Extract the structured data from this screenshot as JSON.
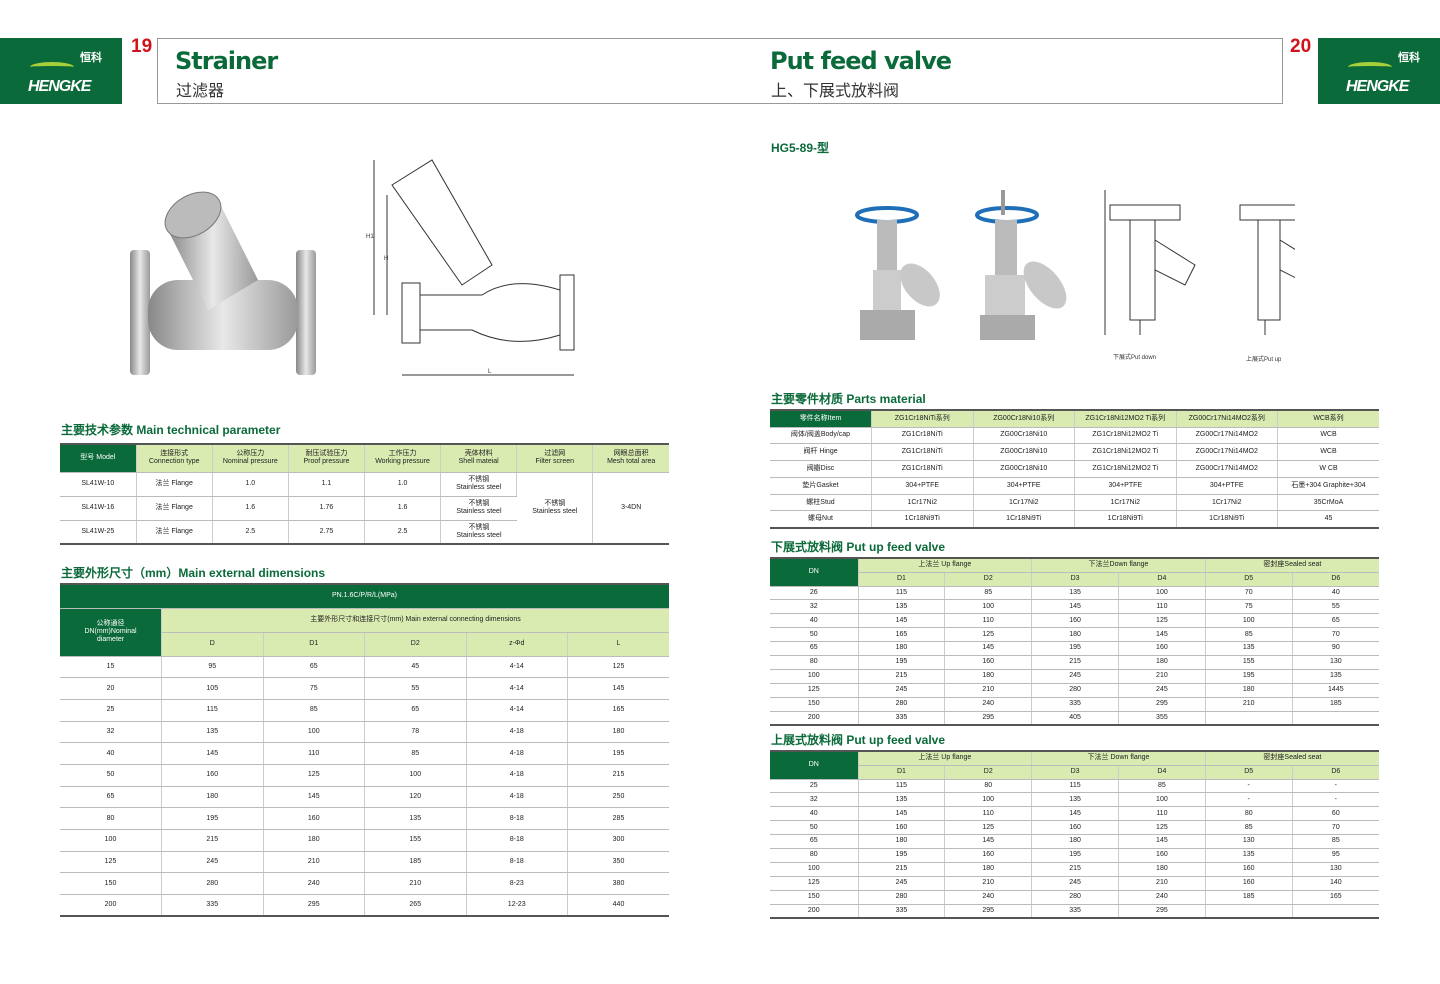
{
  "brand": {
    "name": "HENGKE",
    "cn": "恒科"
  },
  "colors": {
    "brand_green": "#0b6a3a",
    "header_light": "#d9ebb0",
    "page_number": "#d0121b"
  },
  "left_page": {
    "number": "19",
    "title_en": "Strainer",
    "title_cn": "过滤器",
    "drawing_labels": {
      "h1": "H1",
      "h": "H",
      "l": "L"
    },
    "tech_title": "主要技术参数 Main technical parameter",
    "tech_headers": [
      "型号 Model",
      "连接形式\nConnection type",
      "公称压力\nNominal pressure",
      "耐压试验压力\nProof pressure",
      "工作压力\nWorking pressure",
      "壳体材料\nShell mateial",
      "过滤网\nFilter screen",
      "网眼总面积\nMesh total area"
    ],
    "tech_rows": [
      [
        "SL41W-10",
        "法兰 Flange",
        "1.0",
        "1.1",
        "1.0",
        "不锈钢\nStainless steel"
      ],
      [
        "SL41W-16",
        "法兰 Flange",
        "1.6",
        "1.76",
        "1.6",
        "不锈钢\nStainless steel"
      ],
      [
        "SL41W-25",
        "法兰 Flange",
        "2.5",
        "2.75",
        "2.5",
        "不锈钢\nStainless steel"
      ]
    ],
    "tech_filter": "不锈钢\nStainless steel",
    "tech_mesh": "3-4DN",
    "dim_title": "主要外形尺寸（mm）Main external dimensions",
    "dim_pn": "PN.1.6C/P/R/L(MPa)",
    "dim_dn_header": "公称通径\nDN(mm)Nominal\ndiameter",
    "dim_group": "主要外形尺寸和连接尺寸(mm) Main external connecting dimensions",
    "dim_cols": [
      "D",
      "D1",
      "D2",
      "z-Φd",
      "L"
    ],
    "dim_rows": [
      [
        "15",
        "95",
        "65",
        "45",
        "4-14",
        "125"
      ],
      [
        "20",
        "105",
        "75",
        "55",
        "4-14",
        "145"
      ],
      [
        "25",
        "115",
        "85",
        "65",
        "4-14",
        "165"
      ],
      [
        "32",
        "135",
        "100",
        "78",
        "4-18",
        "180"
      ],
      [
        "40",
        "145",
        "110",
        "85",
        "4-18",
        "195"
      ],
      [
        "50",
        "160",
        "125",
        "100",
        "4-18",
        "215"
      ],
      [
        "65",
        "180",
        "145",
        "120",
        "4-18",
        "250"
      ],
      [
        "80",
        "195",
        "160",
        "135",
        "8-18",
        "285"
      ],
      [
        "100",
        "215",
        "180",
        "155",
        "8-18",
        "300"
      ],
      [
        "125",
        "245",
        "210",
        "185",
        "8-18",
        "350"
      ],
      [
        "150",
        "280",
        "240",
        "210",
        "8-23",
        "380"
      ],
      [
        "200",
        "335",
        "295",
        "265",
        "12-23",
        "440"
      ]
    ]
  },
  "right_page": {
    "number": "20",
    "title_en": "Put feed valve",
    "title_cn": "上、下展式放料阀",
    "model": "HG5-89-型",
    "caption_down": "下展式Put down",
    "caption_up": "上展式Put up",
    "parts_title": "主要零件材质 Parts material",
    "parts_headers": [
      "零件名称Item",
      "ZG1Cr18NiTi系列",
      "ZG00Cr18Ni10系列",
      "ZG1Cr18Ni12MO2 Ti系列",
      "ZG00Cr17Ni14MO2系列",
      "WCB系列"
    ],
    "parts_rows": [
      [
        "阀体/阀盖Body/cap",
        "ZG1Cr18NiTi",
        "ZG00Cr18Ni10",
        "ZG1Cr18Ni12MO2 Ti",
        "ZG00Cr17Ni14MO2",
        "WCB"
      ],
      [
        "阀杆 Hinge",
        "ZG1Cr18NiTi",
        "ZG00Cr18Ni10",
        "ZG1Cr18Ni12MO2 Ti",
        "ZG00Cr17Ni14MO2",
        "WCB"
      ],
      [
        "阀瓣Disc",
        "ZG1Cr18NiTi",
        "ZG00Cr18Ni10",
        "ZG1Cr18Ni12MO2 Ti",
        "ZG00Cr17Ni14MO2",
        "W CB"
      ],
      [
        "垫片Gasket",
        "304+PTFE",
        "304+PTFE",
        "304+PTFE",
        "304+PTFE",
        "石墨+304 Graphite+304"
      ],
      [
        "螺柱Stud",
        "1Cr17Ni2",
        "1Cr17Ni2",
        "1Cr17Ni2",
        "1Cr17Ni2",
        "35CrMoA"
      ],
      [
        "螺母Nut",
        "1Cr18Ni9Ti",
        "1Cr18Ni9Ti",
        "1Cr18Ni9Ti",
        "1Cr18Ni9Ti",
        "45"
      ]
    ],
    "down_title": "下展式放料阀 Put up feed valve",
    "down_groups": [
      "上法兰 Up flange",
      "下法兰Down flange",
      "密封座Sealed seat"
    ],
    "up_title": "上展式放料阀 Put up feed valve",
    "up_groups": [
      "上法兰 Up flange",
      "下法兰 Down flange",
      "密封座Sealed seat"
    ],
    "dn_label": "DN",
    "sub_cols": [
      "D1",
      "D2",
      "D3",
      "D4",
      "D5",
      "D6"
    ],
    "down_rows": [
      [
        "26",
        "115",
        "85",
        "135",
        "100",
        "70",
        "40"
      ],
      [
        "32",
        "135",
        "100",
        "145",
        "110",
        "75",
        "55"
      ],
      [
        "40",
        "145",
        "110",
        "160",
        "125",
        "100",
        "65"
      ],
      [
        "50",
        "165",
        "125",
        "180",
        "145",
        "85",
        "70"
      ],
      [
        "65",
        "180",
        "145",
        "195",
        "160",
        "135",
        "90"
      ],
      [
        "80",
        "195",
        "160",
        "215",
        "180",
        "155",
        "130"
      ],
      [
        "100",
        "215",
        "180",
        "245",
        "210",
        "195",
        "135"
      ],
      [
        "125",
        "245",
        "210",
        "280",
        "245",
        "180",
        "1445"
      ],
      [
        "150",
        "280",
        "240",
        "335",
        "295",
        "210",
        "185"
      ],
      [
        "200",
        "335",
        "295",
        "405",
        "355",
        "",
        ""
      ]
    ],
    "up_rows": [
      [
        "25",
        "115",
        "80",
        "115",
        "85",
        "-",
        "-"
      ],
      [
        "32",
        "135",
        "100",
        "135",
        "100",
        "-",
        "-"
      ],
      [
        "40",
        "145",
        "110",
        "145",
        "110",
        "80",
        "60"
      ],
      [
        "50",
        "160",
        "125",
        "160",
        "125",
        "85",
        "70"
      ],
      [
        "65",
        "180",
        "145",
        "180",
        "145",
        "130",
        "85"
      ],
      [
        "80",
        "195",
        "160",
        "195",
        "160",
        "135",
        "95"
      ],
      [
        "100",
        "215",
        "180",
        "215",
        "180",
        "160",
        "130"
      ],
      [
        "125",
        "245",
        "210",
        "245",
        "210",
        "160",
        "140"
      ],
      [
        "150",
        "280",
        "240",
        "280",
        "240",
        "185",
        "165"
      ],
      [
        "200",
        "335",
        "295",
        "335",
        "295",
        "",
        ""
      ]
    ]
  }
}
